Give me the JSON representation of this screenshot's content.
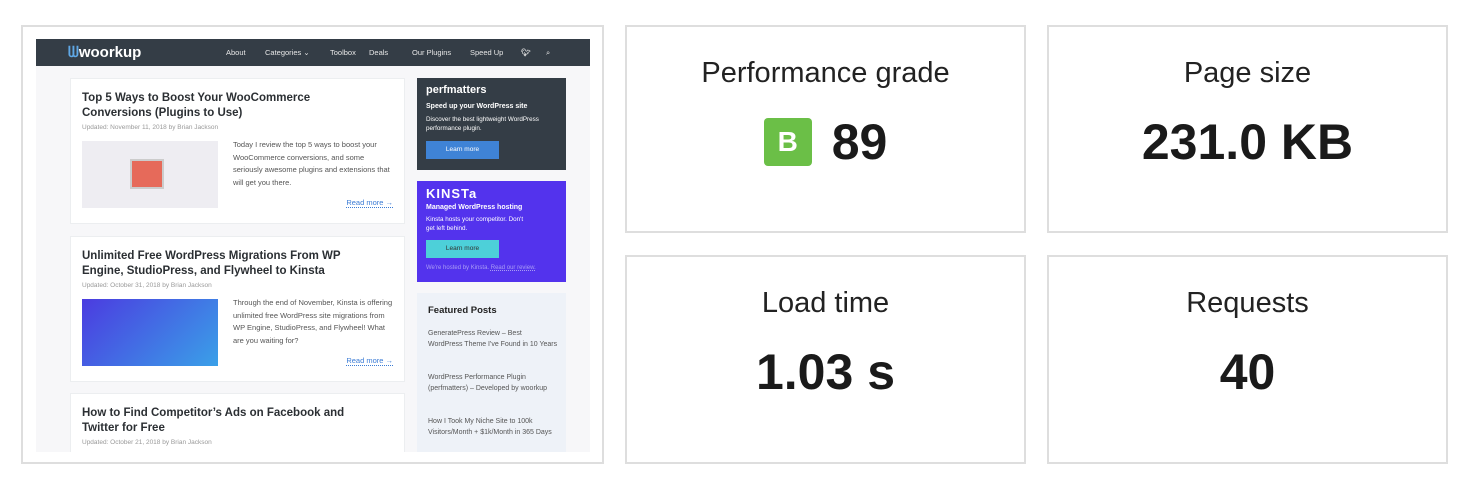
{
  "screenshot": {
    "nav": {
      "logo": "woorkup",
      "items": [
        "About",
        "Categories ⌄",
        "Toolbox",
        "Deals",
        "Our Plugins",
        "Speed Up"
      ],
      "twitter_icon": "twitter-icon",
      "search_icon": "search-icon"
    },
    "posts": [
      {
        "title": "Top 5 Ways to Boost Your WooCommerce Conversions (Plugins to Use)",
        "meta": "Updated: November 11, 2018 by Brian Jackson",
        "excerpt": "Today I review the top 5 ways to boost your WooCommerce conversions, and some seriously awesome plugins and extensions that will get you there.",
        "read_more": "Read more →"
      },
      {
        "title": "Unlimited Free WordPress Migrations From WP Engine, StudioPress, and Flywheel to Kinsta",
        "meta": "Updated: October 31, 2018 by Brian Jackson",
        "excerpt": "Through the end of November, Kinsta is offering unlimited free WordPress site migrations from WP Engine, StudioPress, and Flywheel! What are you waiting for?",
        "read_more": "Read more →"
      },
      {
        "title": "How to Find Competitor’s Ads on Facebook and Twitter for Free",
        "meta": "Updated: October 21, 2018 by Brian Jackson"
      }
    ],
    "perfmatters": {
      "brand": "perfmatters",
      "heading": "Speed up your WordPress site",
      "text": "Discover the best lightweight WordPress performance plugin.",
      "button": "Learn more"
    },
    "kinsta": {
      "brand": "KINSTa",
      "heading": "Managed WordPress hosting",
      "text": "Kinsta hosts your competitor. Don't get left behind.",
      "button": "Learn more",
      "footer": "We're hosted by Kinsta.",
      "footer_link": "Read our review."
    },
    "featured": {
      "title": "Featured Posts",
      "items": [
        "GeneratePress Review – Best WordPress Theme I've Found in 10 Years",
        "WordPress Performance Plugin (perfmatters) – Developed by woorkup",
        "How I Took My Niche Site to 100k Visitors/Month + $1k/Month in 365 Days"
      ]
    }
  },
  "stats": {
    "grade": {
      "label": "Performance grade",
      "letter": "B",
      "value": "89",
      "color": "#6bbf47"
    },
    "size": {
      "label": "Page size",
      "value": "231.0 KB"
    },
    "load": {
      "label": "Load time",
      "value": "1.03 s"
    },
    "requests": {
      "label": "Requests",
      "value": "40"
    }
  }
}
